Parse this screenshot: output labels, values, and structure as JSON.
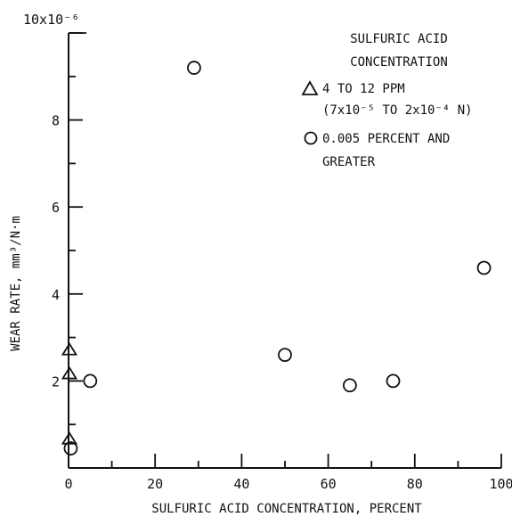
{
  "chart_data": {
    "type": "scatter",
    "title": "",
    "xlabel": "SULFURIC ACID CONCENTRATION, PERCENT",
    "ylabel": "WEAR RATE, mm³/N·m",
    "xlim": [
      0,
      100
    ],
    "ylim": [
      0,
      1e-05
    ],
    "x_ticks": [
      0,
      20,
      40,
      60,
      80,
      100
    ],
    "x_tick_labels": [
      "0",
      "20",
      "40",
      "60",
      "80",
      "100"
    ],
    "y_ticks": [
      2e-06,
      4e-06,
      6e-06,
      8e-06,
      1e-05
    ],
    "y_tick_labels": [
      "2",
      "4",
      "6",
      "8",
      "10x10⁻⁶"
    ],
    "grid": false,
    "legend_position": "top-right",
    "legend_title": [
      "SULFURIC ACID",
      "CONCENTRATION"
    ],
    "series": [
      {
        "name": "4 TO 12 PPM (7x10⁻⁵ TO 2x10⁻⁴ N)",
        "legend_lines": [
          "4 TO 12 PPM",
          "(7x10⁻⁵ TO 2x10⁻⁴ N)"
        ],
        "marker": "triangle",
        "points": [
          {
            "x": 0.2,
            "y": 2.7e-06
          },
          {
            "x": 0.2,
            "y": 2.15e-06
          },
          {
            "x": 0.2,
            "y": 6.5e-07
          }
        ]
      },
      {
        "name": "0.005 PERCENT AND GREATER",
        "legend_lines": [
          "0.005 PERCENT AND",
          "GREATER"
        ],
        "marker": "circle",
        "points": [
          {
            "x": 0.5,
            "y": 4.5e-07
          },
          {
            "x": 5,
            "y": 2e-06
          },
          {
            "x": 29,
            "y": 9.2e-06
          },
          {
            "x": 50,
            "y": 2.6e-06
          },
          {
            "x": 65,
            "y": 1.9e-06
          },
          {
            "x": 75,
            "y": 2e-06
          },
          {
            "x": 96,
            "y": 4.6e-06
          }
        ]
      }
    ]
  }
}
